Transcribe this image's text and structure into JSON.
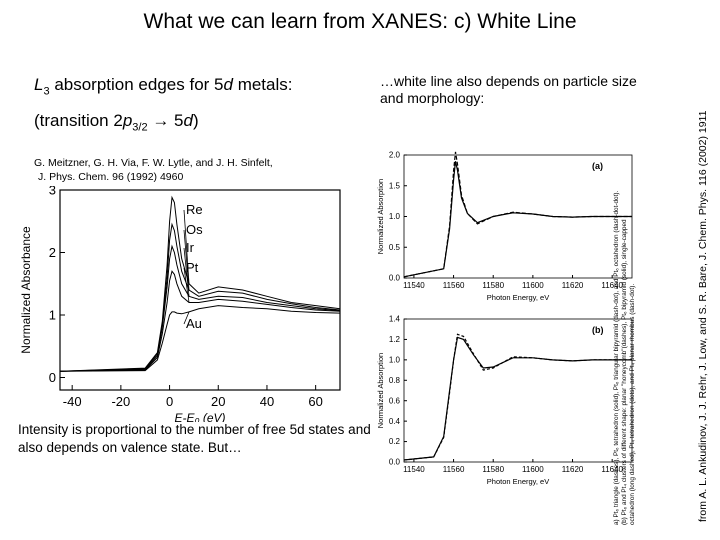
{
  "slide_title": "What we can learn from XANES: c) White Line",
  "left_heading": {
    "line1_pre": "L",
    "line1_sub": "3",
    "line1_mid": " absorption edges for 5",
    "line1_ital": "d",
    "line1_post": " metals:",
    "line2_pre": "(transition 2",
    "line2_ital": "p",
    "line2_sub": "3/2",
    "line2_arrow": " → 5",
    "line2_ital2": "d",
    "line2_post": ")"
  },
  "citation_left": {
    "authors": "G. Meitzner, G. H. Via, F. W. Lytle, and J. H. Sinfelt,",
    "journal": "J. Phys. Chem. 96 (1992) 4960"
  },
  "right_intro": "…white line also depends on particle size and morphology:",
  "bottom_text": "Intensity is proportional to the number of free 5d states and also depends on valence state.  But…",
  "right_citation": "from A. L. Ankudinov, J. J. Rehr, J. Low, and S. R. Bare, J. Chem. Phys. 116 (2002) 1911",
  "caption_lines": [
    "a) Pt₆ triangle (dashes), Pt₆ tetrahedron (solid), Pt₆ triangular bipyramid (dash-dot), and Pt₆ octahedron (dash-dot-dot).",
    "(b) Pt₆ and Pt₄ clusters of different shape: planar \"honeycomb\"(dashes), Pt₆ bipyramid (solid), single-capped",
    "octahedron (long dashed), Pt₄ tetrahedron (dots), and Pt₄ planar rhombus (dash-dot)."
  ],
  "chart_data": [
    {
      "type": "line",
      "title": "",
      "xlabel": "E-E₀ (eV)",
      "ylabel": "Normalized Absorbance",
      "xlim": [
        -45,
        70
      ],
      "ylim": [
        -0.2,
        3
      ],
      "xticks": [
        "-40",
        "-20",
        "0",
        "20",
        "40",
        "60"
      ],
      "yticks": [
        "0",
        "1",
        "2",
        "3"
      ],
      "legend": "inline-right",
      "series": [
        {
          "name": "Re",
          "x": [
            -45,
            -10,
            -5,
            -3,
            -1,
            0,
            1,
            2,
            3,
            5,
            8,
            12,
            20,
            30,
            40,
            50,
            60,
            70
          ],
          "values": [
            0.1,
            0.15,
            0.4,
            0.9,
            1.8,
            2.5,
            2.88,
            2.8,
            2.45,
            1.9,
            1.5,
            1.35,
            1.45,
            1.4,
            1.3,
            1.2,
            1.15,
            1.1
          ]
        },
        {
          "name": "Os",
          "x": [
            -45,
            -10,
            -5,
            -3,
            -1,
            0,
            1,
            2,
            3,
            5,
            8,
            12,
            20,
            30,
            40,
            50,
            60,
            70
          ],
          "values": [
            0.1,
            0.14,
            0.38,
            0.85,
            1.6,
            2.2,
            2.45,
            2.35,
            2.1,
            1.7,
            1.4,
            1.3,
            1.38,
            1.35,
            1.25,
            1.18,
            1.12,
            1.08
          ]
        },
        {
          "name": "Ir",
          "x": [
            -45,
            -10,
            -5,
            -3,
            -1,
            0,
            1,
            2,
            3,
            5,
            8,
            12,
            20,
            30,
            40,
            50,
            60,
            70
          ],
          "values": [
            0.1,
            0.13,
            0.35,
            0.8,
            1.45,
            1.9,
            2.1,
            2.0,
            1.8,
            1.5,
            1.3,
            1.25,
            1.3,
            1.28,
            1.2,
            1.15,
            1.1,
            1.07
          ]
        },
        {
          "name": "Pt",
          "x": [
            -45,
            -10,
            -5,
            -3,
            -1,
            0,
            1,
            2,
            3,
            5,
            8,
            12,
            20,
            30,
            40,
            50,
            60,
            70
          ],
          "values": [
            0.1,
            0.12,
            0.32,
            0.7,
            1.2,
            1.55,
            1.7,
            1.65,
            1.5,
            1.3,
            1.2,
            1.2,
            1.25,
            1.22,
            1.17,
            1.12,
            1.08,
            1.06
          ]
        },
        {
          "name": "Au",
          "x": [
            -45,
            -10,
            -5,
            -3,
            -1,
            0,
            1,
            2,
            3,
            5,
            8,
            12,
            20,
            30,
            40,
            50,
            60,
            70
          ],
          "values": [
            0.1,
            0.11,
            0.28,
            0.55,
            0.85,
            1.0,
            1.05,
            1.05,
            1.03,
            1.02,
            1.05,
            1.1,
            1.15,
            1.12,
            1.1,
            1.06,
            1.04,
            1.03
          ]
        }
      ]
    },
    {
      "type": "line",
      "title": "",
      "panel_label": "(a)",
      "xlabel": "Photon Energy, eV",
      "ylabel": "Normalized Absorption",
      "xlim": [
        11535,
        11650
      ],
      "ylim": [
        0,
        2.0
      ],
      "xticks": [
        "11540",
        "11560",
        "11580",
        "11600",
        "11620",
        "11640"
      ],
      "yticks": [
        "0.0",
        "0.5",
        "1.0",
        "1.5",
        "2.0"
      ],
      "series": [
        {
          "x": [
            11535,
            11555,
            11558,
            11560,
            11561,
            11562,
            11564,
            11567,
            11572,
            11580,
            11590,
            11600,
            11610,
            11620,
            11630,
            11640,
            11650
          ],
          "values": [
            0.02,
            0.15,
            0.8,
            1.6,
            1.9,
            1.75,
            1.3,
            1.05,
            0.9,
            1.0,
            1.06,
            1.04,
            1.0,
            0.99,
            1.0,
            1.0,
            1.0
          ]
        },
        {
          "x": [
            11535,
            11555,
            11558,
            11560,
            11561,
            11562,
            11564,
            11567,
            11572,
            11580,
            11590,
            11600,
            11610,
            11620,
            11630,
            11640,
            11650
          ],
          "values": [
            0.02,
            0.15,
            0.85,
            1.75,
            2.05,
            1.85,
            1.35,
            1.05,
            0.88,
            1.0,
            1.07,
            1.04,
            1.0,
            0.99,
            1.0,
            1.0,
            1.0
          ]
        }
      ]
    },
    {
      "type": "line",
      "title": "",
      "panel_label": "(b)",
      "xlabel": "Photon Energy, eV",
      "ylabel": "Normalized Absorption",
      "xlim": [
        11535,
        11650
      ],
      "ylim": [
        0,
        1.4
      ],
      "xticks": [
        "11540",
        "11560",
        "11580",
        "11600",
        "11620",
        "11640"
      ],
      "yticks": [
        "0.0",
        "0.2",
        "0.4",
        "0.6",
        "0.8",
        "1.0",
        "1.2",
        "1.4"
      ],
      "series": [
        {
          "x": [
            11535,
            11550,
            11555,
            11558,
            11560,
            11562,
            11565,
            11570,
            11575,
            11580,
            11590,
            11600,
            11610,
            11620,
            11630,
            11640,
            11650
          ],
          "values": [
            0.02,
            0.05,
            0.25,
            0.7,
            1.0,
            1.22,
            1.2,
            1.05,
            0.92,
            0.93,
            1.02,
            1.02,
            1.0,
            0.99,
            1.0,
            1.0,
            1.0
          ]
        },
        {
          "x": [
            11535,
            11550,
            11555,
            11558,
            11560,
            11562,
            11565,
            11570,
            11575,
            11580,
            11590,
            11600,
            11610,
            11620,
            11630,
            11640,
            11650
          ],
          "values": [
            0.02,
            0.05,
            0.24,
            0.68,
            1.0,
            1.25,
            1.23,
            1.06,
            0.9,
            0.92,
            1.03,
            1.02,
            1.0,
            0.99,
            1.0,
            1.0,
            1.0
          ]
        }
      ]
    }
  ]
}
